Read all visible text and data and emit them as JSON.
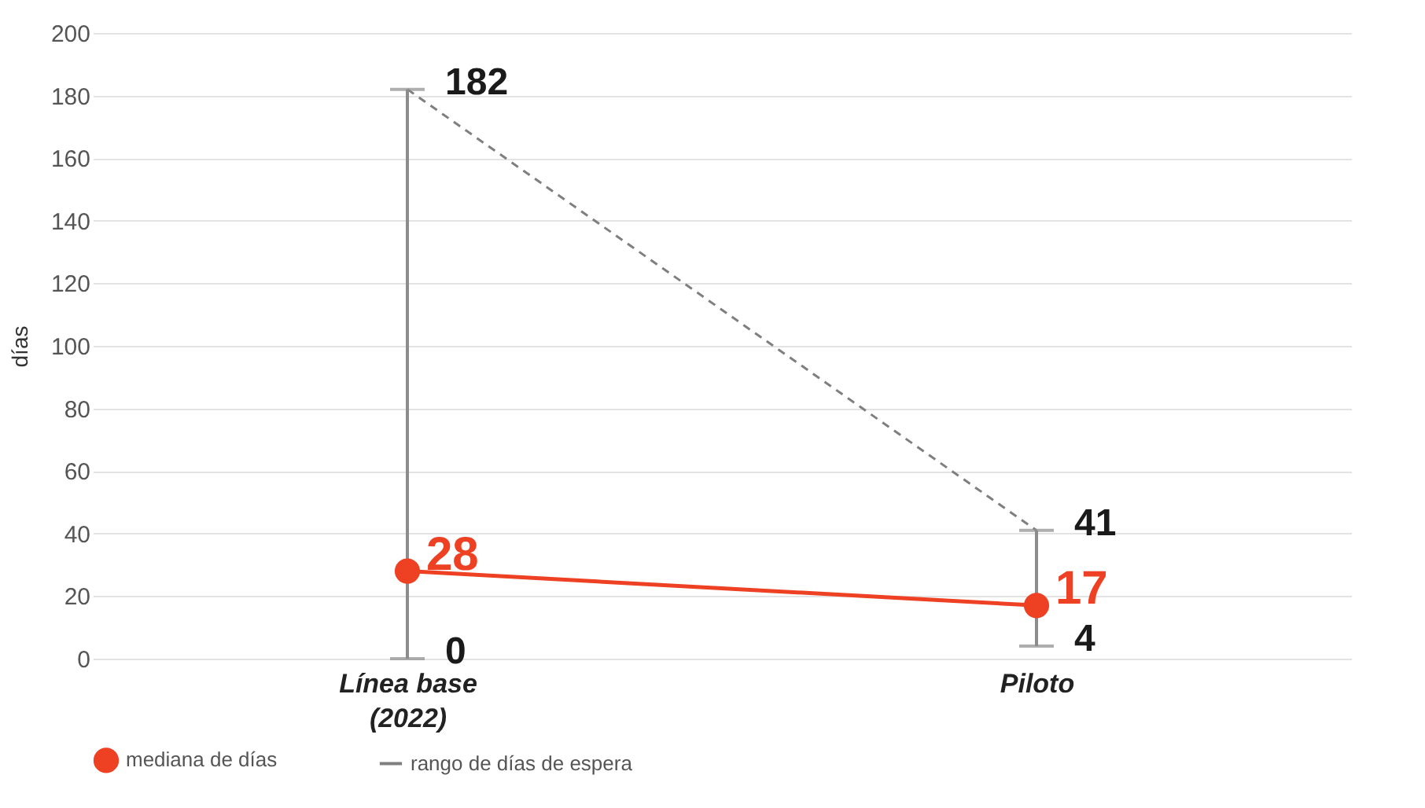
{
  "chart_data": {
    "type": "line",
    "ylabel": "días",
    "categories": [
      "Línea base (2022)",
      "Piloto"
    ],
    "series": [
      {
        "name": "mediana de días",
        "color": "#ee4123",
        "values": [
          28,
          17
        ],
        "marker": "circle",
        "errors": [
          [
            0,
            182
          ],
          [
            4,
            41
          ]
        ],
        "data_labels": true
      },
      {
        "name": "rango de días de espera",
        "color": "#7f7f7f",
        "values": [
          182,
          41
        ],
        "line_style": "dashed",
        "marker": "none"
      }
    ],
    "annotations": [
      {
        "text": "182",
        "x": "Línea base (2022)",
        "y": 182
      },
      {
        "text": "0",
        "x": "Línea base (2022)",
        "y": 0
      },
      {
        "text": "41",
        "x": "Piloto",
        "y": 41
      },
      {
        "text": "4",
        "x": "Piloto",
        "y": 4
      }
    ],
    "ylim": [
      0,
      200
    ],
    "yticks": [
      0,
      20,
      40,
      60,
      80,
      100,
      120,
      140,
      160,
      180,
      200
    ],
    "grid": "y",
    "legend": "bottom"
  }
}
